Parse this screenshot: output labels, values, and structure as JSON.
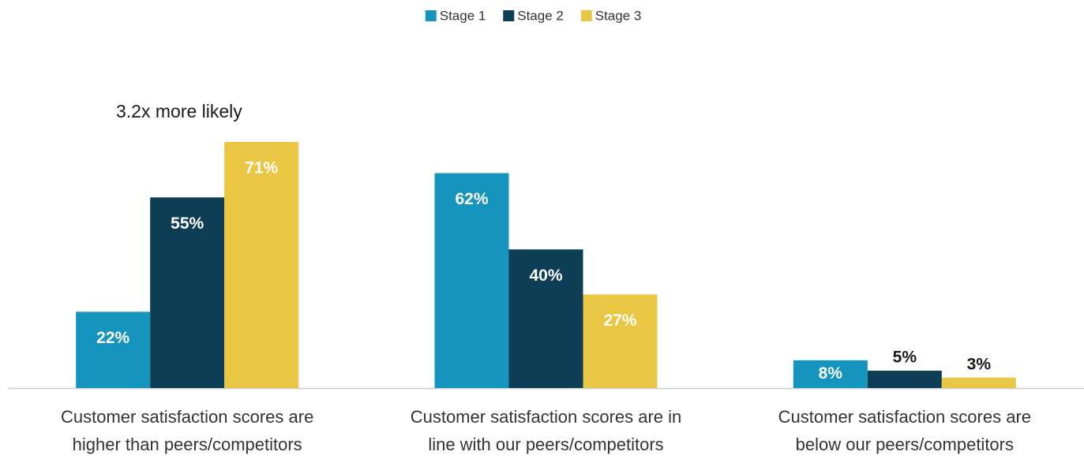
{
  "chart_data": {
    "type": "bar",
    "annotation": "3.2x more likely",
    "categories": [
      [
        "Customer satisfaction scores are",
        "higher than peers/competitors"
      ],
      [
        "Customer satisfaction scores are in",
        "line with our peers/competitors"
      ],
      [
        "Customer satisfaction scores are",
        "below our peers/competitors"
      ]
    ],
    "series": [
      {
        "name": "Stage 1",
        "color": "#1595bd",
        "values": [
          22,
          62,
          8
        ],
        "value_labels": [
          "22%",
          "62%",
          "8%"
        ]
      },
      {
        "name": "Stage 2",
        "color": "#0e3d56",
        "values": [
          55,
          40,
          5
        ],
        "value_labels": [
          "55%",
          "40%",
          "5%"
        ]
      },
      {
        "name": "Stage 3",
        "color": "#e9c643",
        "values": [
          71,
          27,
          3
        ],
        "value_labels": [
          "71%",
          "27%",
          "3%"
        ]
      }
    ],
    "legend": "top"
  }
}
